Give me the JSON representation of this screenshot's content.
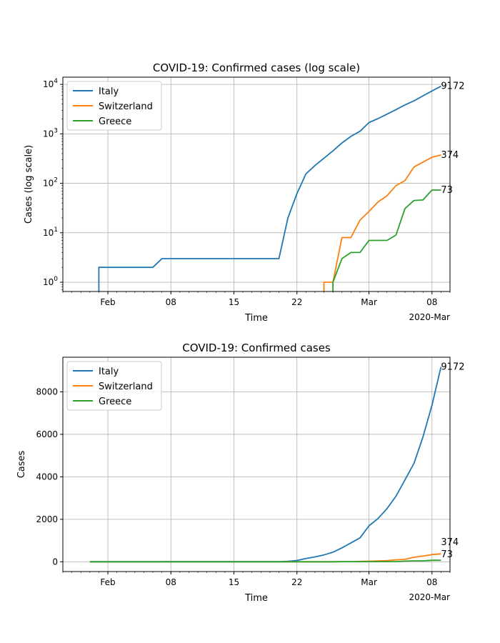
{
  "chart_data": [
    {
      "type": "line",
      "yscale": "log",
      "title": "COVID-19: Confirmed cases (log scale)",
      "xlabel": "Time",
      "ylabel": "Cases (log scale)",
      "x_offset_label": "2020-Mar",
      "x_ticks": [
        {
          "day": 10,
          "label": "Feb"
        },
        {
          "day": 17,
          "label": "08"
        },
        {
          "day": 24,
          "label": "15"
        },
        {
          "day": 31,
          "label": "22"
        },
        {
          "day": 39,
          "label": "Mar"
        },
        {
          "day": 46,
          "label": "08"
        }
      ],
      "y_ticks": [
        {
          "value": 1,
          "base": "10",
          "exp": "0"
        },
        {
          "value": 10,
          "base": "10",
          "exp": "1"
        },
        {
          "value": 100,
          "base": "10",
          "exp": "2"
        },
        {
          "value": 1000,
          "base": "10",
          "exp": "3"
        },
        {
          "value": 10000,
          "base": "10",
          "exp": "4"
        }
      ],
      "xlim": [
        5,
        48
      ],
      "ylim": [
        0.65,
        14000
      ],
      "grid": true,
      "legend_position": "upper-left",
      "series": [
        {
          "name": "Italy",
          "color": "#1f77b4",
          "end_label": "9172",
          "points": [
            [
              9,
              0
            ],
            [
              9,
              2
            ],
            [
              15,
              2
            ],
            [
              16,
              3
            ],
            [
              29,
              3
            ],
            [
              30,
              20
            ],
            [
              31,
              62
            ],
            [
              32,
              155
            ],
            [
              33,
              229
            ],
            [
              34,
              322
            ],
            [
              35,
              453
            ],
            [
              36,
              655
            ],
            [
              37,
              888
            ],
            [
              38,
              1128
            ],
            [
              39,
              1694
            ],
            [
              40,
              2036
            ],
            [
              41,
              2502
            ],
            [
              42,
              3089
            ],
            [
              43,
              3858
            ],
            [
              44,
              4636
            ],
            [
              45,
              5883
            ],
            [
              46,
              7375
            ],
            [
              47,
              9172
            ]
          ]
        },
        {
          "name": "Switzerland",
          "color": "#ff7f0e",
          "end_label": "374",
          "points": [
            [
              34,
              0
            ],
            [
              34,
              1
            ],
            [
              35,
              1
            ],
            [
              36,
              8
            ],
            [
              37,
              8
            ],
            [
              38,
              18
            ],
            [
              39,
              27
            ],
            [
              40,
              42
            ],
            [
              41,
              56
            ],
            [
              42,
              90
            ],
            [
              43,
              114
            ],
            [
              44,
              214
            ],
            [
              45,
              268
            ],
            [
              46,
              337
            ],
            [
              47,
              374
            ]
          ]
        },
        {
          "name": "Greece",
          "color": "#2ca02c",
          "end_label": "73",
          "points": [
            [
              35,
              0
            ],
            [
              35,
              1
            ],
            [
              36,
              3
            ],
            [
              37,
              4
            ],
            [
              38,
              4
            ],
            [
              39,
              7
            ],
            [
              40,
              7
            ],
            [
              41,
              7
            ],
            [
              42,
              9
            ],
            [
              43,
              31
            ],
            [
              44,
              45
            ],
            [
              45,
              46
            ],
            [
              46,
              73
            ],
            [
              47,
              73
            ]
          ]
        }
      ]
    },
    {
      "type": "line",
      "yscale": "linear",
      "title": "COVID-19: Confirmed cases",
      "xlabel": "Time",
      "ylabel": "Cases",
      "x_offset_label": "2020-Mar",
      "x_ticks": [
        {
          "day": 10,
          "label": "Feb"
        },
        {
          "day": 17,
          "label": "08"
        },
        {
          "day": 24,
          "label": "15"
        },
        {
          "day": 31,
          "label": "22"
        },
        {
          "day": 39,
          "label": "Mar"
        },
        {
          "day": 46,
          "label": "08"
        }
      ],
      "y_ticks": [
        {
          "value": 0,
          "label": "0"
        },
        {
          "value": 2000,
          "label": "2000"
        },
        {
          "value": 4000,
          "label": "4000"
        },
        {
          "value": 6000,
          "label": "6000"
        },
        {
          "value": 8000,
          "label": "8000"
        }
      ],
      "xlim": [
        5,
        48
      ],
      "ylim": [
        -460,
        9630
      ],
      "grid": true,
      "legend_position": "upper-left",
      "series": [
        {
          "name": "Italy",
          "color": "#1f77b4",
          "end_label": "9172",
          "points": [
            [
              8,
              0
            ],
            [
              9,
              2
            ],
            [
              15,
              2
            ],
            [
              16,
              3
            ],
            [
              29,
              3
            ],
            [
              30,
              20
            ],
            [
              31,
              62
            ],
            [
              32,
              155
            ],
            [
              33,
              229
            ],
            [
              34,
              322
            ],
            [
              35,
              453
            ],
            [
              36,
              655
            ],
            [
              37,
              888
            ],
            [
              38,
              1128
            ],
            [
              39,
              1694
            ],
            [
              40,
              2036
            ],
            [
              41,
              2502
            ],
            [
              42,
              3089
            ],
            [
              43,
              3858
            ],
            [
              44,
              4636
            ],
            [
              45,
              5883
            ],
            [
              46,
              7375
            ],
            [
              47,
              9172
            ]
          ]
        },
        {
          "name": "Switzerland",
          "color": "#ff7f0e",
          "end_label": "374",
          "points": [
            [
              8,
              0
            ],
            [
              34,
              0
            ],
            [
              35,
              1
            ],
            [
              36,
              8
            ],
            [
              37,
              8
            ],
            [
              38,
              18
            ],
            [
              39,
              27
            ],
            [
              40,
              42
            ],
            [
              41,
              56
            ],
            [
              42,
              90
            ],
            [
              43,
              114
            ],
            [
              44,
              214
            ],
            [
              45,
              268
            ],
            [
              46,
              337
            ],
            [
              47,
              374
            ]
          ]
        },
        {
          "name": "Greece",
          "color": "#2ca02c",
          "end_label": "73",
          "points": [
            [
              8,
              0
            ],
            [
              35,
              0
            ],
            [
              36,
              3
            ],
            [
              37,
              4
            ],
            [
              38,
              4
            ],
            [
              39,
              7
            ],
            [
              40,
              7
            ],
            [
              41,
              7
            ],
            [
              42,
              9
            ],
            [
              43,
              31
            ],
            [
              44,
              45
            ],
            [
              45,
              46
            ],
            [
              46,
              73
            ],
            [
              47,
              73
            ]
          ]
        }
      ]
    }
  ]
}
